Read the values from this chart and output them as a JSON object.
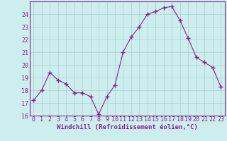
{
  "x": [
    0,
    1,
    2,
    3,
    4,
    5,
    6,
    7,
    8,
    9,
    10,
    11,
    12,
    13,
    14,
    15,
    16,
    17,
    18,
    19,
    20,
    21,
    22,
    23
  ],
  "y": [
    17.2,
    18.0,
    19.4,
    18.8,
    18.5,
    17.8,
    17.8,
    17.5,
    16.1,
    17.5,
    18.4,
    21.0,
    22.2,
    23.0,
    24.0,
    24.2,
    24.5,
    24.6,
    23.5,
    22.1,
    20.6,
    20.2,
    19.8,
    18.3
  ],
  "line_color": "#882288",
  "marker": "+",
  "marker_size": 4,
  "bg_color": "#cceeee",
  "grid_color": "#aacccc",
  "ylim": [
    16,
    25
  ],
  "yticks": [
    16,
    17,
    18,
    19,
    20,
    21,
    22,
    23,
    24
  ],
  "xlabel": "Windchill (Refroidissement éolien,°C)",
  "axis_label_fontsize": 6.5,
  "tick_fontsize": 6.0
}
